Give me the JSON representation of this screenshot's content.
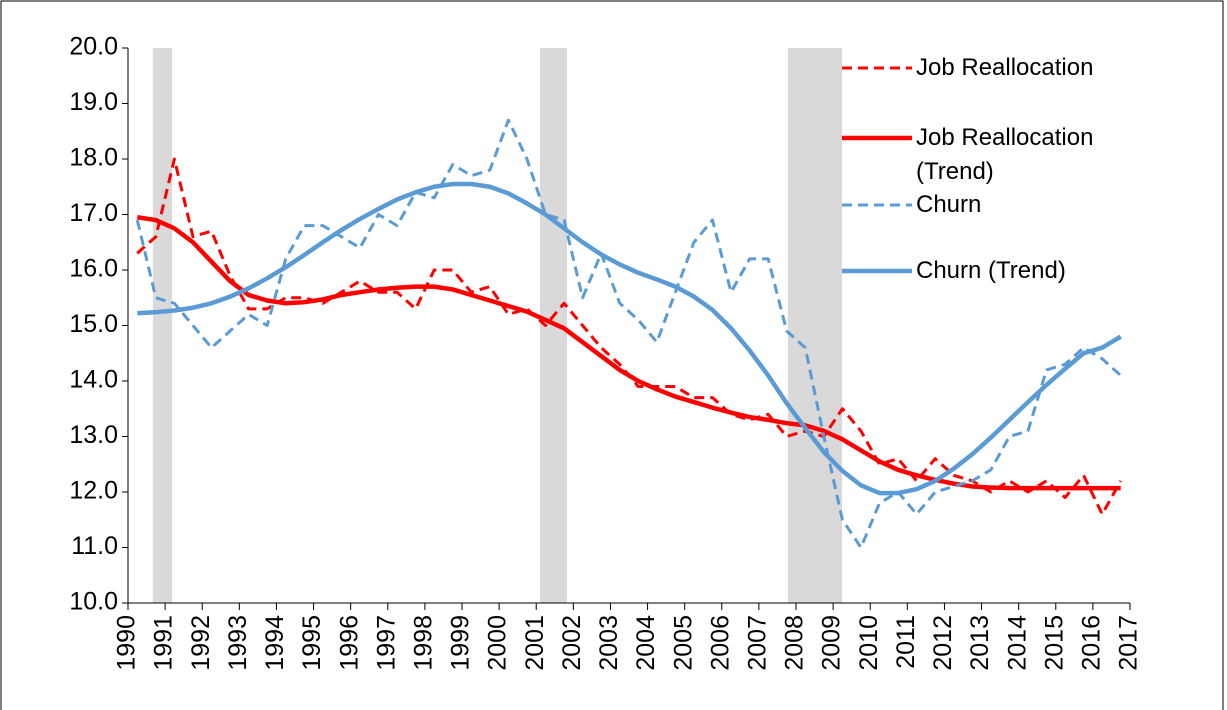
{
  "chart_data": {
    "type": "line",
    "x": [
      1990.25,
      1990.75,
      1991.25,
      1991.75,
      1992.25,
      1992.75,
      1993.25,
      1993.75,
      1994.25,
      1994.75,
      1995.25,
      1995.75,
      1996.25,
      1996.75,
      1997.25,
      1997.75,
      1998.25,
      1998.75,
      1999.25,
      1999.75,
      2000.25,
      2000.75,
      2001.25,
      2001.75,
      2002.25,
      2002.75,
      2003.25,
      2003.75,
      2004.25,
      2004.75,
      2005.25,
      2005.75,
      2006.25,
      2006.75,
      2007.25,
      2007.75,
      2008.25,
      2008.75,
      2009.25,
      2009.75,
      2010.25,
      2010.75,
      2011.25,
      2011.75,
      2012.25,
      2012.75,
      2013.25,
      2013.75,
      2014.25,
      2014.75,
      2015.25,
      2015.75,
      2016.25,
      2016.75
    ],
    "series": [
      {
        "name": "Job Reallocation",
        "color": "#ff0000",
        "style": "dashed",
        "values": [
          16.3,
          16.6,
          18.0,
          16.6,
          16.7,
          15.9,
          15.3,
          15.3,
          15.5,
          15.5,
          15.4,
          15.6,
          15.8,
          15.6,
          15.6,
          15.3,
          16.0,
          16.0,
          15.6,
          15.7,
          15.2,
          15.3,
          15.0,
          15.4,
          15.0,
          14.6,
          14.3,
          13.9,
          13.9,
          13.9,
          13.7,
          13.7,
          13.4,
          13.3,
          13.4,
          13.0,
          13.1,
          13.0,
          13.5,
          13.1,
          12.5,
          12.6,
          12.2,
          12.6,
          12.3,
          12.2,
          12.0,
          12.2,
          12.0,
          12.2,
          11.9,
          12.3,
          11.6,
          12.2
        ]
      },
      {
        "name": "Job Reallocation (Trend)",
        "color": "#ff0000",
        "style": "solid",
        "values": [
          16.95,
          16.9,
          16.75,
          16.5,
          16.15,
          15.8,
          15.55,
          15.45,
          15.4,
          15.42,
          15.47,
          15.55,
          15.6,
          15.65,
          15.68,
          15.7,
          15.7,
          15.65,
          15.55,
          15.45,
          15.35,
          15.25,
          15.1,
          14.95,
          14.7,
          14.45,
          14.2,
          14.0,
          13.85,
          13.72,
          13.62,
          13.52,
          13.43,
          13.35,
          13.3,
          13.24,
          13.2,
          13.1,
          12.95,
          12.75,
          12.55,
          12.4,
          12.3,
          12.22,
          12.15,
          12.1,
          12.08,
          12.07,
          12.07,
          12.07,
          12.07,
          12.07,
          12.07,
          12.07
        ]
      },
      {
        "name": "Churn",
        "color": "#5b9bd5",
        "style": "dashed",
        "values": [
          16.9,
          15.5,
          15.4,
          15.0,
          14.6,
          14.9,
          15.2,
          15.0,
          16.2,
          16.8,
          16.8,
          16.6,
          16.4,
          17.0,
          16.8,
          17.4,
          17.3,
          17.9,
          17.7,
          17.8,
          18.7,
          18.0,
          17.0,
          16.9,
          15.5,
          16.3,
          15.4,
          15.1,
          14.7,
          15.6,
          16.5,
          16.9,
          15.6,
          16.2,
          16.2,
          14.9,
          14.6,
          13.0,
          11.5,
          11.0,
          11.8,
          12.0,
          11.6,
          12.0,
          12.1,
          12.2,
          12.4,
          13.0,
          13.1,
          14.2,
          14.3,
          14.6,
          14.4,
          14.1
        ]
      },
      {
        "name": "Churn (Trend)",
        "color": "#5b9bd5",
        "style": "solid",
        "values": [
          15.22,
          15.24,
          15.27,
          15.32,
          15.4,
          15.52,
          15.67,
          15.85,
          16.05,
          16.27,
          16.5,
          16.72,
          16.92,
          17.1,
          17.27,
          17.4,
          17.5,
          17.55,
          17.55,
          17.5,
          17.38,
          17.2,
          17.0,
          16.75,
          16.5,
          16.28,
          16.1,
          15.95,
          15.83,
          15.7,
          15.52,
          15.28,
          14.95,
          14.55,
          14.1,
          13.6,
          13.15,
          12.72,
          12.38,
          12.12,
          11.98,
          11.98,
          12.05,
          12.2,
          12.42,
          12.68,
          12.98,
          13.3,
          13.62,
          13.93,
          14.22,
          14.5,
          14.6,
          14.8
        ]
      }
    ],
    "shaded_regions": [
      [
        1990.67,
        1991.19
      ],
      [
        2001.1,
        2001.83
      ],
      [
        2007.78,
        2009.24
      ]
    ],
    "shade_color": "#d9d9d9",
    "xlim": [
      1990,
      2017
    ],
    "xticks": [
      1990,
      1991,
      1992,
      1993,
      1994,
      1995,
      1996,
      1997,
      1998,
      1999,
      2000,
      2001,
      2002,
      2003,
      2004,
      2005,
      2006,
      2007,
      2008,
      2009,
      2010,
      2011,
      2012,
      2013,
      2014,
      2015,
      2016,
      2017
    ],
    "ylim": [
      10,
      20
    ],
    "yticks": [
      {
        "value": 10,
        "label": "10.0"
      },
      {
        "value": 11,
        "label": "11.0"
      },
      {
        "value": 12,
        "label": "12.0"
      },
      {
        "value": 13,
        "label": "13.0"
      },
      {
        "value": 14,
        "label": "14.0"
      },
      {
        "value": 15,
        "label": "15.0"
      },
      {
        "value": 16,
        "label": "16.0"
      },
      {
        "value": 17,
        "label": "17.0"
      },
      {
        "value": 18,
        "label": "18.0"
      },
      {
        "value": 19,
        "label": "19.0"
      },
      {
        "value": 20,
        "label": "20.0"
      }
    ],
    "legend": "top-right"
  }
}
